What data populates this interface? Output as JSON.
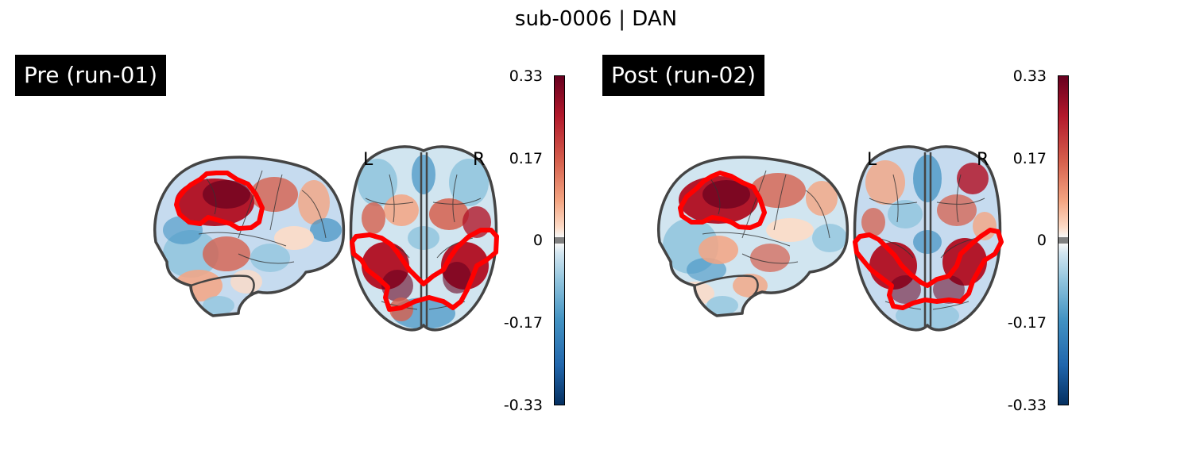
{
  "figure": {
    "title": "sub-0006 | DAN"
  },
  "panels": [
    {
      "label": "Pre (run-01)",
      "colorbar_ticks": [
        "0.33",
        "0.17",
        "0",
        "-0.17",
        "-0.33"
      ],
      "orientation": {
        "left": "L",
        "right": "R"
      }
    },
    {
      "label": "Post (run-02)",
      "colorbar_ticks": [
        "0.33",
        "0.17",
        "0",
        "-0.17",
        "-0.33"
      ],
      "orientation": {
        "left": "L",
        "right": "R"
      }
    }
  ],
  "colors": {
    "outline": "#444444",
    "network_contour": "#ff0000",
    "positive_max": "#67001f",
    "negative_max": "#053061",
    "label_bg": "#000000"
  }
}
